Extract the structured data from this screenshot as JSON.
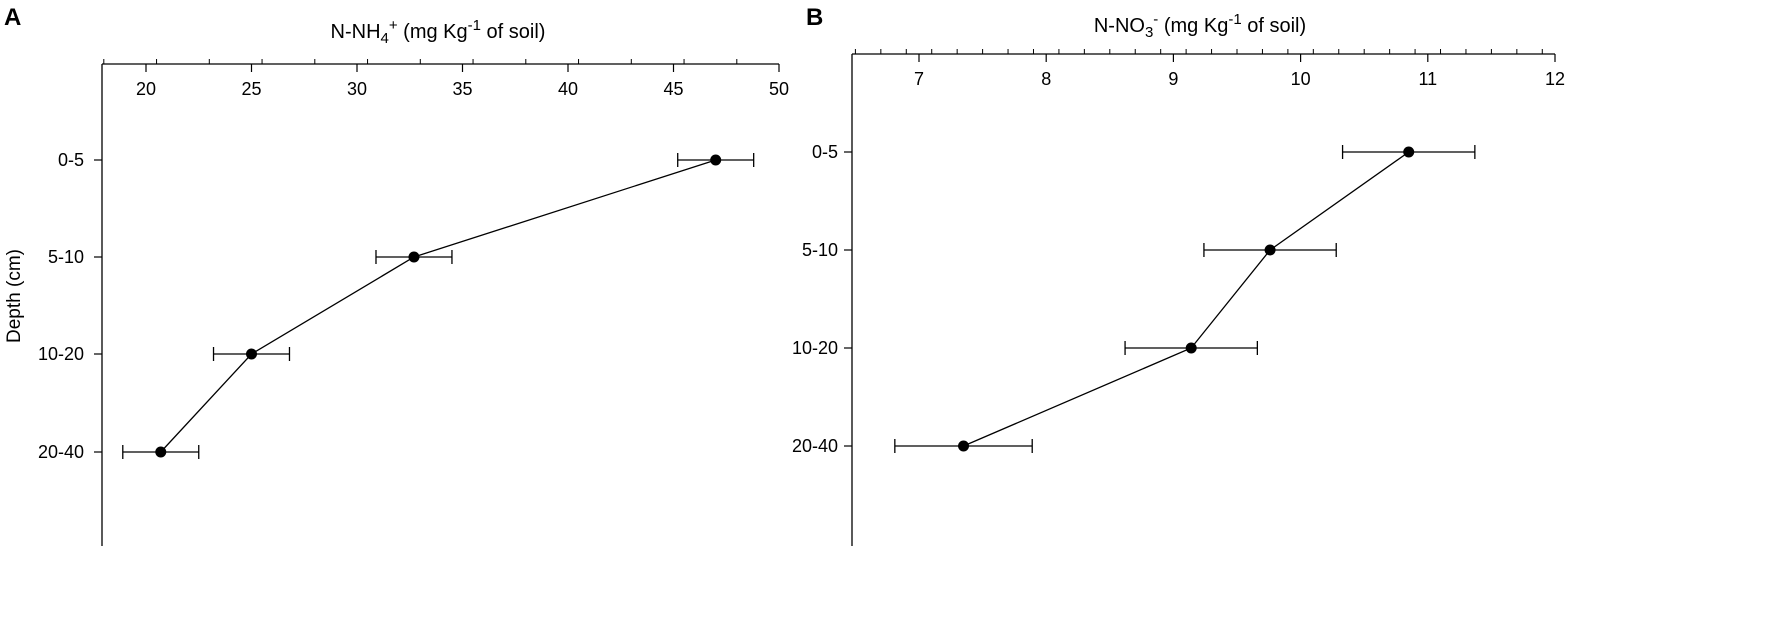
{
  "chart_data": [
    {
      "type": "line",
      "panel_label": "A",
      "title": "",
      "xlabel": "N-NH4+ (mg Kg-1 of soil)",
      "xlabel_parts": {
        "base": "N-NH",
        "sub": "4",
        "sup": "+",
        "rest1": " (mg Kg",
        "sup2": "-1",
        "rest2": " of soil)"
      },
      "ylabel": "Depth (cm)",
      "x_ticks": [
        20,
        25,
        30,
        35,
        40,
        45,
        50
      ],
      "xlim": [
        18,
        50
      ],
      "categories": [
        "0-5",
        "5-10",
        "10-20",
        "20-40"
      ],
      "series": [
        {
          "values": [
            47.0,
            32.7,
            25.0,
            20.7
          ],
          "error": [
            1.8,
            1.8,
            1.8,
            1.8
          ]
        }
      ],
      "axis_position": "top",
      "grid": false
    },
    {
      "type": "line",
      "panel_label": "B",
      "title": "",
      "xlabel": "N-NO3- (mg Kg-1 of soil)",
      "xlabel_parts": {
        "base": "N-NO",
        "sub": "3",
        "sup": "-",
        "rest1": " (mg Kg",
        "sup2": "-1",
        "rest2": " of soil)"
      },
      "ylabel": "",
      "x_ticks": [
        7,
        8,
        9,
        10,
        11,
        12
      ],
      "xlim": [
        6.5,
        12
      ],
      "categories": [
        "0-5",
        "5-10",
        "10-20",
        "20-40"
      ],
      "series": [
        {
          "values": [
            10.85,
            9.76,
            9.14,
            7.35
          ],
          "error": [
            0.52,
            0.52,
            0.52,
            0.54
          ]
        }
      ],
      "axis_position": "top",
      "grid": false
    }
  ]
}
